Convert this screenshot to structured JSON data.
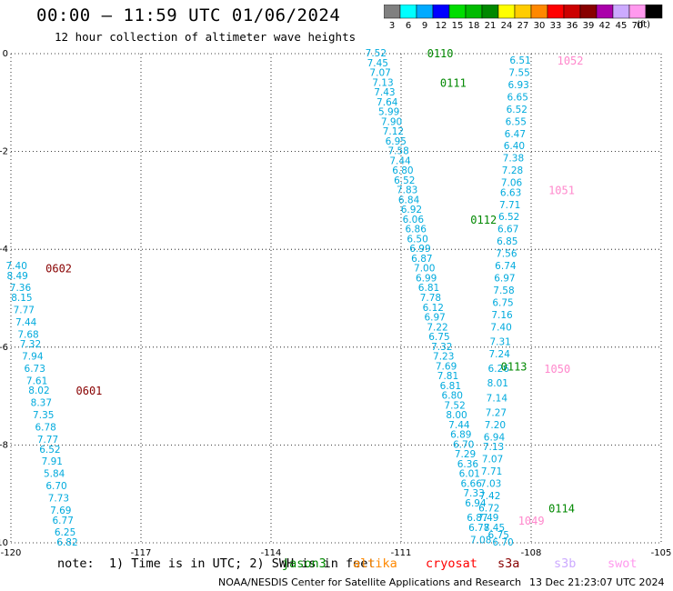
{
  "header": {
    "title": "00:00 – 11:59 UTC 01/06/2024",
    "subtitle": "12 hour collection of altimeter wave heights"
  },
  "colorbar": {
    "unit": "(ft)",
    "levels": [
      {
        "label": "3",
        "color": "#808080"
      },
      {
        "label": "6",
        "color": "#00ffff"
      },
      {
        "label": "9",
        "color": "#00aaff"
      },
      {
        "label": "12",
        "color": "#0000ff"
      },
      {
        "label": "15",
        "color": "#00dd00"
      },
      {
        "label": "18",
        "color": "#00bb00"
      },
      {
        "label": "21",
        "color": "#008800"
      },
      {
        "label": "24",
        "color": "#ffff00"
      },
      {
        "label": "27",
        "color": "#ffcc00"
      },
      {
        "label": "30",
        "color": "#ff8800"
      },
      {
        "label": "33",
        "color": "#ff0000"
      },
      {
        "label": "36",
        "color": "#cc0000"
      },
      {
        "label": "39",
        "color": "#880000"
      },
      {
        "label": "42",
        "color": "#aa00aa"
      },
      {
        "label": "45",
        "color": "#ccaaff"
      },
      {
        "label": "70",
        "color": "#ff99ee"
      },
      {
        "label": "",
        "color": "#000000"
      }
    ]
  },
  "footer": {
    "note": "note:  1) Time is in UTC; 2) SWH is in feet",
    "satellites": [
      {
        "name": "jason3",
        "color": "#008800"
      },
      {
        "name": "altika",
        "color": "#ff8800"
      },
      {
        "name": "cryosat",
        "color": "#ff0000"
      },
      {
        "name": "s3a",
        "color": "#880000"
      },
      {
        "name": "s3b",
        "color": "#ccaaff"
      },
      {
        "name": "swot",
        "color": "#ff99ee"
      }
    ],
    "credit": "NOAA/NESDIS Center for Satellite Applications and Research",
    "timestamp": "13 Dec 21:23:07 UTC 2024"
  },
  "colors": {
    "value_text": "#00aadd",
    "jason3": "#008800",
    "s3a": "#880000",
    "swot": "#ff88cc"
  },
  "chart_data": {
    "type": "scatter",
    "title": "00:00 – 11:59 UTC 01/06/2024",
    "xlim": [
      -120,
      -105
    ],
    "ylim": [
      -10,
      0
    ],
    "xticks": [
      -120,
      -117,
      -114,
      -111,
      -108,
      -105
    ],
    "yticks": [
      0,
      -2,
      -4,
      -6,
      -8,
      -10
    ],
    "grid": true,
    "time_labels": [
      {
        "text": "0110",
        "x": -110.4,
        "y": 0.0,
        "sat": "jason3"
      },
      {
        "text": "0111",
        "x": -110.1,
        "y": -0.6,
        "sat": "jason3"
      },
      {
        "text": "0112",
        "x": -109.4,
        "y": -3.4,
        "sat": "jason3"
      },
      {
        "text": "0113",
        "x": -108.7,
        "y": -6.4,
        "sat": "jason3"
      },
      {
        "text": "0114",
        "x": -107.6,
        "y": -9.3,
        "sat": "jason3"
      },
      {
        "text": "0602",
        "x": -119.2,
        "y": -4.4,
        "sat": "s3a"
      },
      {
        "text": "0601",
        "x": -118.5,
        "y": -6.9,
        "sat": "s3a"
      },
      {
        "text": "1052",
        "x": -107.4,
        "y": -0.15,
        "sat": "swot"
      },
      {
        "text": "1051",
        "x": -107.6,
        "y": -2.8,
        "sat": "swot"
      },
      {
        "text": "1050",
        "x": -107.7,
        "y": -6.45,
        "sat": "swot"
      },
      {
        "text": "1049",
        "x": -108.3,
        "y": -9.55,
        "sat": "swot"
      }
    ],
    "series": [
      {
        "name": "jason3",
        "points": [
          {
            "x": -111.58,
            "y": 0.0,
            "v": "7.52"
          },
          {
            "x": -111.54,
            "y": -0.2,
            "v": "7.45"
          },
          {
            "x": -111.48,
            "y": -0.4,
            "v": "7.07"
          },
          {
            "x": -111.42,
            "y": -0.6,
            "v": "7.13"
          },
          {
            "x": -111.38,
            "y": -0.8,
            "v": "7.43"
          },
          {
            "x": -111.32,
            "y": -1.0,
            "v": "7.64"
          },
          {
            "x": -111.28,
            "y": -1.2,
            "v": "5.99"
          },
          {
            "x": -111.22,
            "y": -1.4,
            "v": "7.90"
          },
          {
            "x": -111.18,
            "y": -1.6,
            "v": "7.12"
          },
          {
            "x": -111.12,
            "y": -1.8,
            "v": "6.95"
          },
          {
            "x": -111.06,
            "y": -2.0,
            "v": "7.58"
          },
          {
            "x": -111.02,
            "y": -2.2,
            "v": "7.44"
          },
          {
            "x": -110.96,
            "y": -2.4,
            "v": "6.80"
          },
          {
            "x": -110.92,
            "y": -2.6,
            "v": "6.52"
          },
          {
            "x": -110.86,
            "y": -2.8,
            "v": "7.83"
          },
          {
            "x": -110.82,
            "y": -3.0,
            "v": "6.84"
          },
          {
            "x": -110.76,
            "y": -3.2,
            "v": "6.92"
          },
          {
            "x": -110.72,
            "y": -3.4,
            "v": "6.06"
          },
          {
            "x": -110.66,
            "y": -3.6,
            "v": "6.86"
          },
          {
            "x": -110.62,
            "y": -3.8,
            "v": "6.50"
          },
          {
            "x": -110.56,
            "y": -4.0,
            "v": "6.99"
          },
          {
            "x": -110.52,
            "y": -4.2,
            "v": "6.87"
          },
          {
            "x": -110.46,
            "y": -4.4,
            "v": "7.00"
          },
          {
            "x": -110.42,
            "y": -4.6,
            "v": "6.99"
          },
          {
            "x": -110.36,
            "y": -4.8,
            "v": "6.81"
          },
          {
            "x": -110.32,
            "y": -5.0,
            "v": "7.78"
          },
          {
            "x": -110.26,
            "y": -5.2,
            "v": "6.12"
          },
          {
            "x": -110.22,
            "y": -5.4,
            "v": "6.97"
          },
          {
            "x": -110.16,
            "y": -5.6,
            "v": "7.22"
          },
          {
            "x": -110.12,
            "y": -5.8,
            "v": "6.75"
          },
          {
            "x": -110.06,
            "y": -6.0,
            "v": "7.32"
          },
          {
            "x": -110.02,
            "y": -6.2,
            "v": "7.23"
          },
          {
            "x": -109.96,
            "y": -6.4,
            "v": "7.69"
          },
          {
            "x": -109.92,
            "y": -6.6,
            "v": "7.81"
          },
          {
            "x": -109.86,
            "y": -6.8,
            "v": "6.81"
          },
          {
            "x": -109.82,
            "y": -7.0,
            "v": "6.80"
          },
          {
            "x": -109.76,
            "y": -7.2,
            "v": "7.52"
          },
          {
            "x": -109.72,
            "y": -7.4,
            "v": "8.00"
          },
          {
            "x": -109.66,
            "y": -7.6,
            "v": "7.44"
          },
          {
            "x": -109.62,
            "y": -7.8,
            "v": "6.89"
          },
          {
            "x": -109.56,
            "y": -8.0,
            "v": "6.70"
          },
          {
            "x": -109.52,
            "y": -8.2,
            "v": "7.29"
          },
          {
            "x": -109.46,
            "y": -8.4,
            "v": "6.36"
          },
          {
            "x": -109.42,
            "y": -8.6,
            "v": "6.01"
          },
          {
            "x": -109.38,
            "y": -8.8,
            "v": "6.66"
          },
          {
            "x": -109.32,
            "y": -9.0,
            "v": "7.33"
          },
          {
            "x": -109.28,
            "y": -9.2,
            "v": "6.94"
          },
          {
            "x": -109.24,
            "y": -9.5,
            "v": "6.87"
          },
          {
            "x": -109.2,
            "y": -9.7,
            "v": "6.78"
          },
          {
            "x": -109.16,
            "y": -9.95,
            "v": "7.08"
          }
        ]
      },
      {
        "name": "s3a",
        "points": [
          {
            "x": -119.87,
            "y": -4.35,
            "v": "7.40"
          },
          {
            "x": -119.85,
            "y": -4.55,
            "v": "8.49"
          },
          {
            "x": -119.78,
            "y": -4.8,
            "v": "7.36"
          },
          {
            "x": -119.75,
            "y": -5.0,
            "v": "8.15"
          },
          {
            "x": -119.7,
            "y": -5.25,
            "v": "7.77"
          },
          {
            "x": -119.65,
            "y": -5.5,
            "v": "7.44"
          },
          {
            "x": -119.6,
            "y": -5.75,
            "v": "7.68"
          },
          {
            "x": -119.55,
            "y": -5.95,
            "v": "7.32"
          },
          {
            "x": -119.5,
            "y": -6.2,
            "v": "7.94"
          },
          {
            "x": -119.45,
            "y": -6.45,
            "v": "6.73"
          },
          {
            "x": -119.4,
            "y": -6.7,
            "v": "7.61"
          },
          {
            "x": -119.35,
            "y": -6.9,
            "v": "8.02"
          },
          {
            "x": -119.3,
            "y": -7.15,
            "v": "8.37"
          },
          {
            "x": -119.25,
            "y": -7.4,
            "v": "7.35"
          },
          {
            "x": -119.2,
            "y": -7.65,
            "v": "6.78"
          },
          {
            "x": -119.15,
            "y": -7.9,
            "v": "7.77"
          },
          {
            "x": -119.1,
            "y": -8.1,
            "v": "6.52"
          },
          {
            "x": -119.05,
            "y": -8.35,
            "v": "7.91"
          },
          {
            "x": -119.0,
            "y": -8.6,
            "v": "5.84"
          },
          {
            "x": -118.95,
            "y": -8.85,
            "v": "6.70"
          },
          {
            "x": -118.9,
            "y": -9.1,
            "v": "7.73"
          },
          {
            "x": -118.85,
            "y": -9.35,
            "v": "7.69"
          },
          {
            "x": -118.8,
            "y": -9.55,
            "v": "6.77"
          },
          {
            "x": -118.75,
            "y": -9.8,
            "v": "6.25"
          },
          {
            "x": -118.7,
            "y": -10.0,
            "v": "6.82"
          }
        ]
      },
      {
        "name": "swot",
        "points": [
          {
            "x": -108.25,
            "y": -0.15,
            "v": "6.51"
          },
          {
            "x": -108.27,
            "y": -0.4,
            "v": "7.55"
          },
          {
            "x": -108.29,
            "y": -0.65,
            "v": "6.93"
          },
          {
            "x": -108.31,
            "y": -0.9,
            "v": "6.65"
          },
          {
            "x": -108.33,
            "y": -1.15,
            "v": "6.52"
          },
          {
            "x": -108.35,
            "y": -1.4,
            "v": "6.55"
          },
          {
            "x": -108.37,
            "y": -1.65,
            "v": "6.47"
          },
          {
            "x": -108.39,
            "y": -1.9,
            "v": "6.40"
          },
          {
            "x": -108.41,
            "y": -2.15,
            "v": "7.38"
          },
          {
            "x": -108.43,
            "y": -2.4,
            "v": "7.28"
          },
          {
            "x": -108.45,
            "y": -2.65,
            "v": "7.06"
          },
          {
            "x": -108.47,
            "y": -2.85,
            "v": "6.63"
          },
          {
            "x": -108.49,
            "y": -3.1,
            "v": "7.71"
          },
          {
            "x": -108.51,
            "y": -3.35,
            "v": "6.52"
          },
          {
            "x": -108.53,
            "y": -3.6,
            "v": "6.67"
          },
          {
            "x": -108.55,
            "y": -3.85,
            "v": "6.85"
          },
          {
            "x": -108.57,
            "y": -4.1,
            "v": "7.56"
          },
          {
            "x": -108.59,
            "y": -4.35,
            "v": "6.74"
          },
          {
            "x": -108.61,
            "y": -4.6,
            "v": "6.97"
          },
          {
            "x": -108.63,
            "y": -4.85,
            "v": "7.58"
          },
          {
            "x": -108.65,
            "y": -5.1,
            "v": "6.75"
          },
          {
            "x": -108.67,
            "y": -5.35,
            "v": "7.16"
          },
          {
            "x": -108.69,
            "y": -5.6,
            "v": "7.40"
          },
          {
            "x": -108.71,
            "y": -5.9,
            "v": "7.31"
          },
          {
            "x": -108.73,
            "y": -6.15,
            "v": "7.24"
          },
          {
            "x": -108.75,
            "y": -6.45,
            "v": "6.26"
          },
          {
            "x": -108.77,
            "y": -6.75,
            "v": "8.01"
          },
          {
            "x": -108.79,
            "y": -7.05,
            "v": "7.14"
          },
          {
            "x": -108.81,
            "y": -7.35,
            "v": "7.27"
          },
          {
            "x": -108.83,
            "y": -7.6,
            "v": "7.20"
          },
          {
            "x": -108.85,
            "y": -7.85,
            "v": "6.94"
          },
          {
            "x": -108.87,
            "y": -8.05,
            "v": "7.13"
          },
          {
            "x": -108.89,
            "y": -8.3,
            "v": "7.07"
          },
          {
            "x": -108.91,
            "y": -8.55,
            "v": "7.71"
          },
          {
            "x": -108.93,
            "y": -8.8,
            "v": "7.03"
          },
          {
            "x": -108.95,
            "y": -9.05,
            "v": "7.42"
          },
          {
            "x": -108.97,
            "y": -9.3,
            "v": "6.72"
          },
          {
            "x": -108.99,
            "y": -9.5,
            "v": "7.49"
          },
          {
            "x": -108.85,
            "y": -9.7,
            "v": "7.45"
          },
          {
            "x": -108.75,
            "y": -9.85,
            "v": "6.75"
          },
          {
            "x": -108.65,
            "y": -10.0,
            "v": "6.70"
          }
        ]
      }
    ]
  }
}
